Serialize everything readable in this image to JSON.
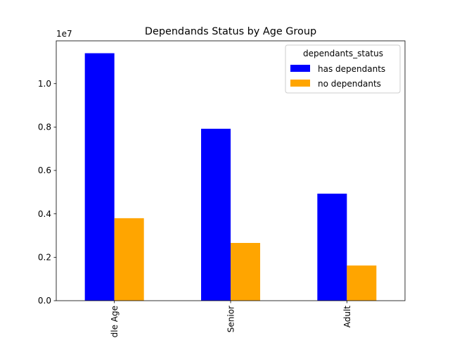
{
  "chart_data": {
    "type": "bar",
    "title": "Dependands Status by Age Group",
    "xlabel": "",
    "ylabel": "",
    "offset_label": "1e7",
    "categories": [
      "Middle Age",
      "Senior",
      "Adult"
    ],
    "series": [
      {
        "name": "has dependants",
        "color": "#0000ff",
        "values": [
          11400000,
          7920000,
          4930000
        ]
      },
      {
        "name": "no dependants",
        "color": "#ffa500",
        "values": [
          3800000,
          2660000,
          1620000
        ]
      }
    ],
    "ylim": [
      0,
      11970000
    ],
    "yticks": [
      0,
      2000000,
      4000000,
      6000000,
      8000000,
      10000000
    ],
    "ytick_labels": [
      "0.0",
      "0.2",
      "0.4",
      "0.6",
      "0.8",
      "1.0"
    ],
    "legend": {
      "title": "dependants_status",
      "position": "top-right"
    },
    "grid": false
  }
}
